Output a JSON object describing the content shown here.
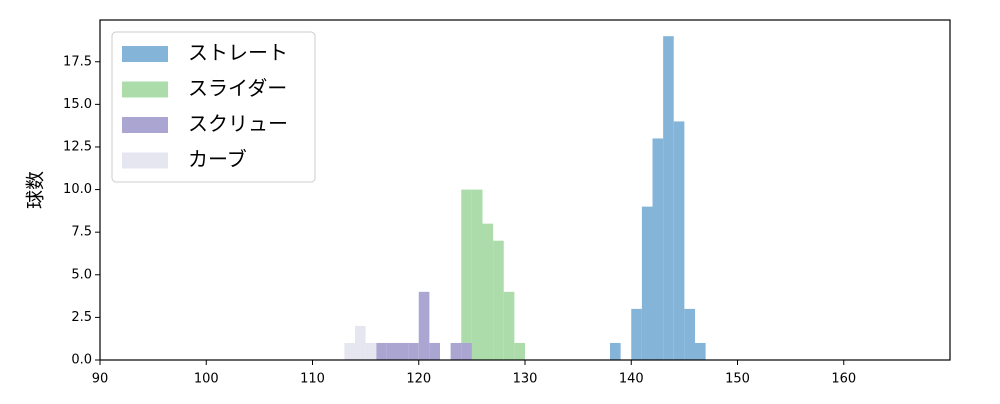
{
  "chart_data": {
    "type": "histogram",
    "y_label": "球数",
    "series": [
      {
        "name": "ストレート",
        "color": "#84b5d9",
        "bins": [
          138,
          139,
          140,
          141,
          142,
          143,
          144,
          145,
          146,
          147
        ],
        "values": [
          1,
          0,
          3,
          9,
          13,
          19,
          14,
          3,
          1
        ]
      },
      {
        "name": "スライダー",
        "color": "#addcab",
        "bins": [
          124,
          125,
          126,
          127,
          128,
          129,
          130
        ],
        "values": [
          10,
          10,
          8,
          7,
          4,
          1
        ]
      },
      {
        "name": "スクリュー",
        "color": "#aba6d1",
        "bins": [
          116,
          117,
          118,
          119,
          120,
          121,
          122,
          123,
          124,
          125
        ],
        "values": [
          1,
          1,
          1,
          1,
          4,
          1,
          0,
          1,
          1
        ]
      },
      {
        "name": "カーブ",
        "color": "#e6e6f1",
        "bins": [
          113,
          114,
          115,
          116
        ],
        "values": [
          1,
          2,
          1
        ]
      }
    ],
    "xlim": [
      90,
      170
    ],
    "xticks": [
      90,
      100,
      110,
      120,
      130,
      140,
      150,
      160
    ],
    "ylim": [
      0,
      19.95
    ],
    "yticks": [
      {
        "value": 0,
        "label": "0.0"
      },
      2.5,
      {
        "value": 5,
        "label": "5.0"
      },
      7.5,
      {
        "value": 10,
        "label": "10.0"
      },
      12.5,
      {
        "value": 15,
        "label": "15.0"
      },
      17.5
    ],
    "legend": "upper left"
  }
}
